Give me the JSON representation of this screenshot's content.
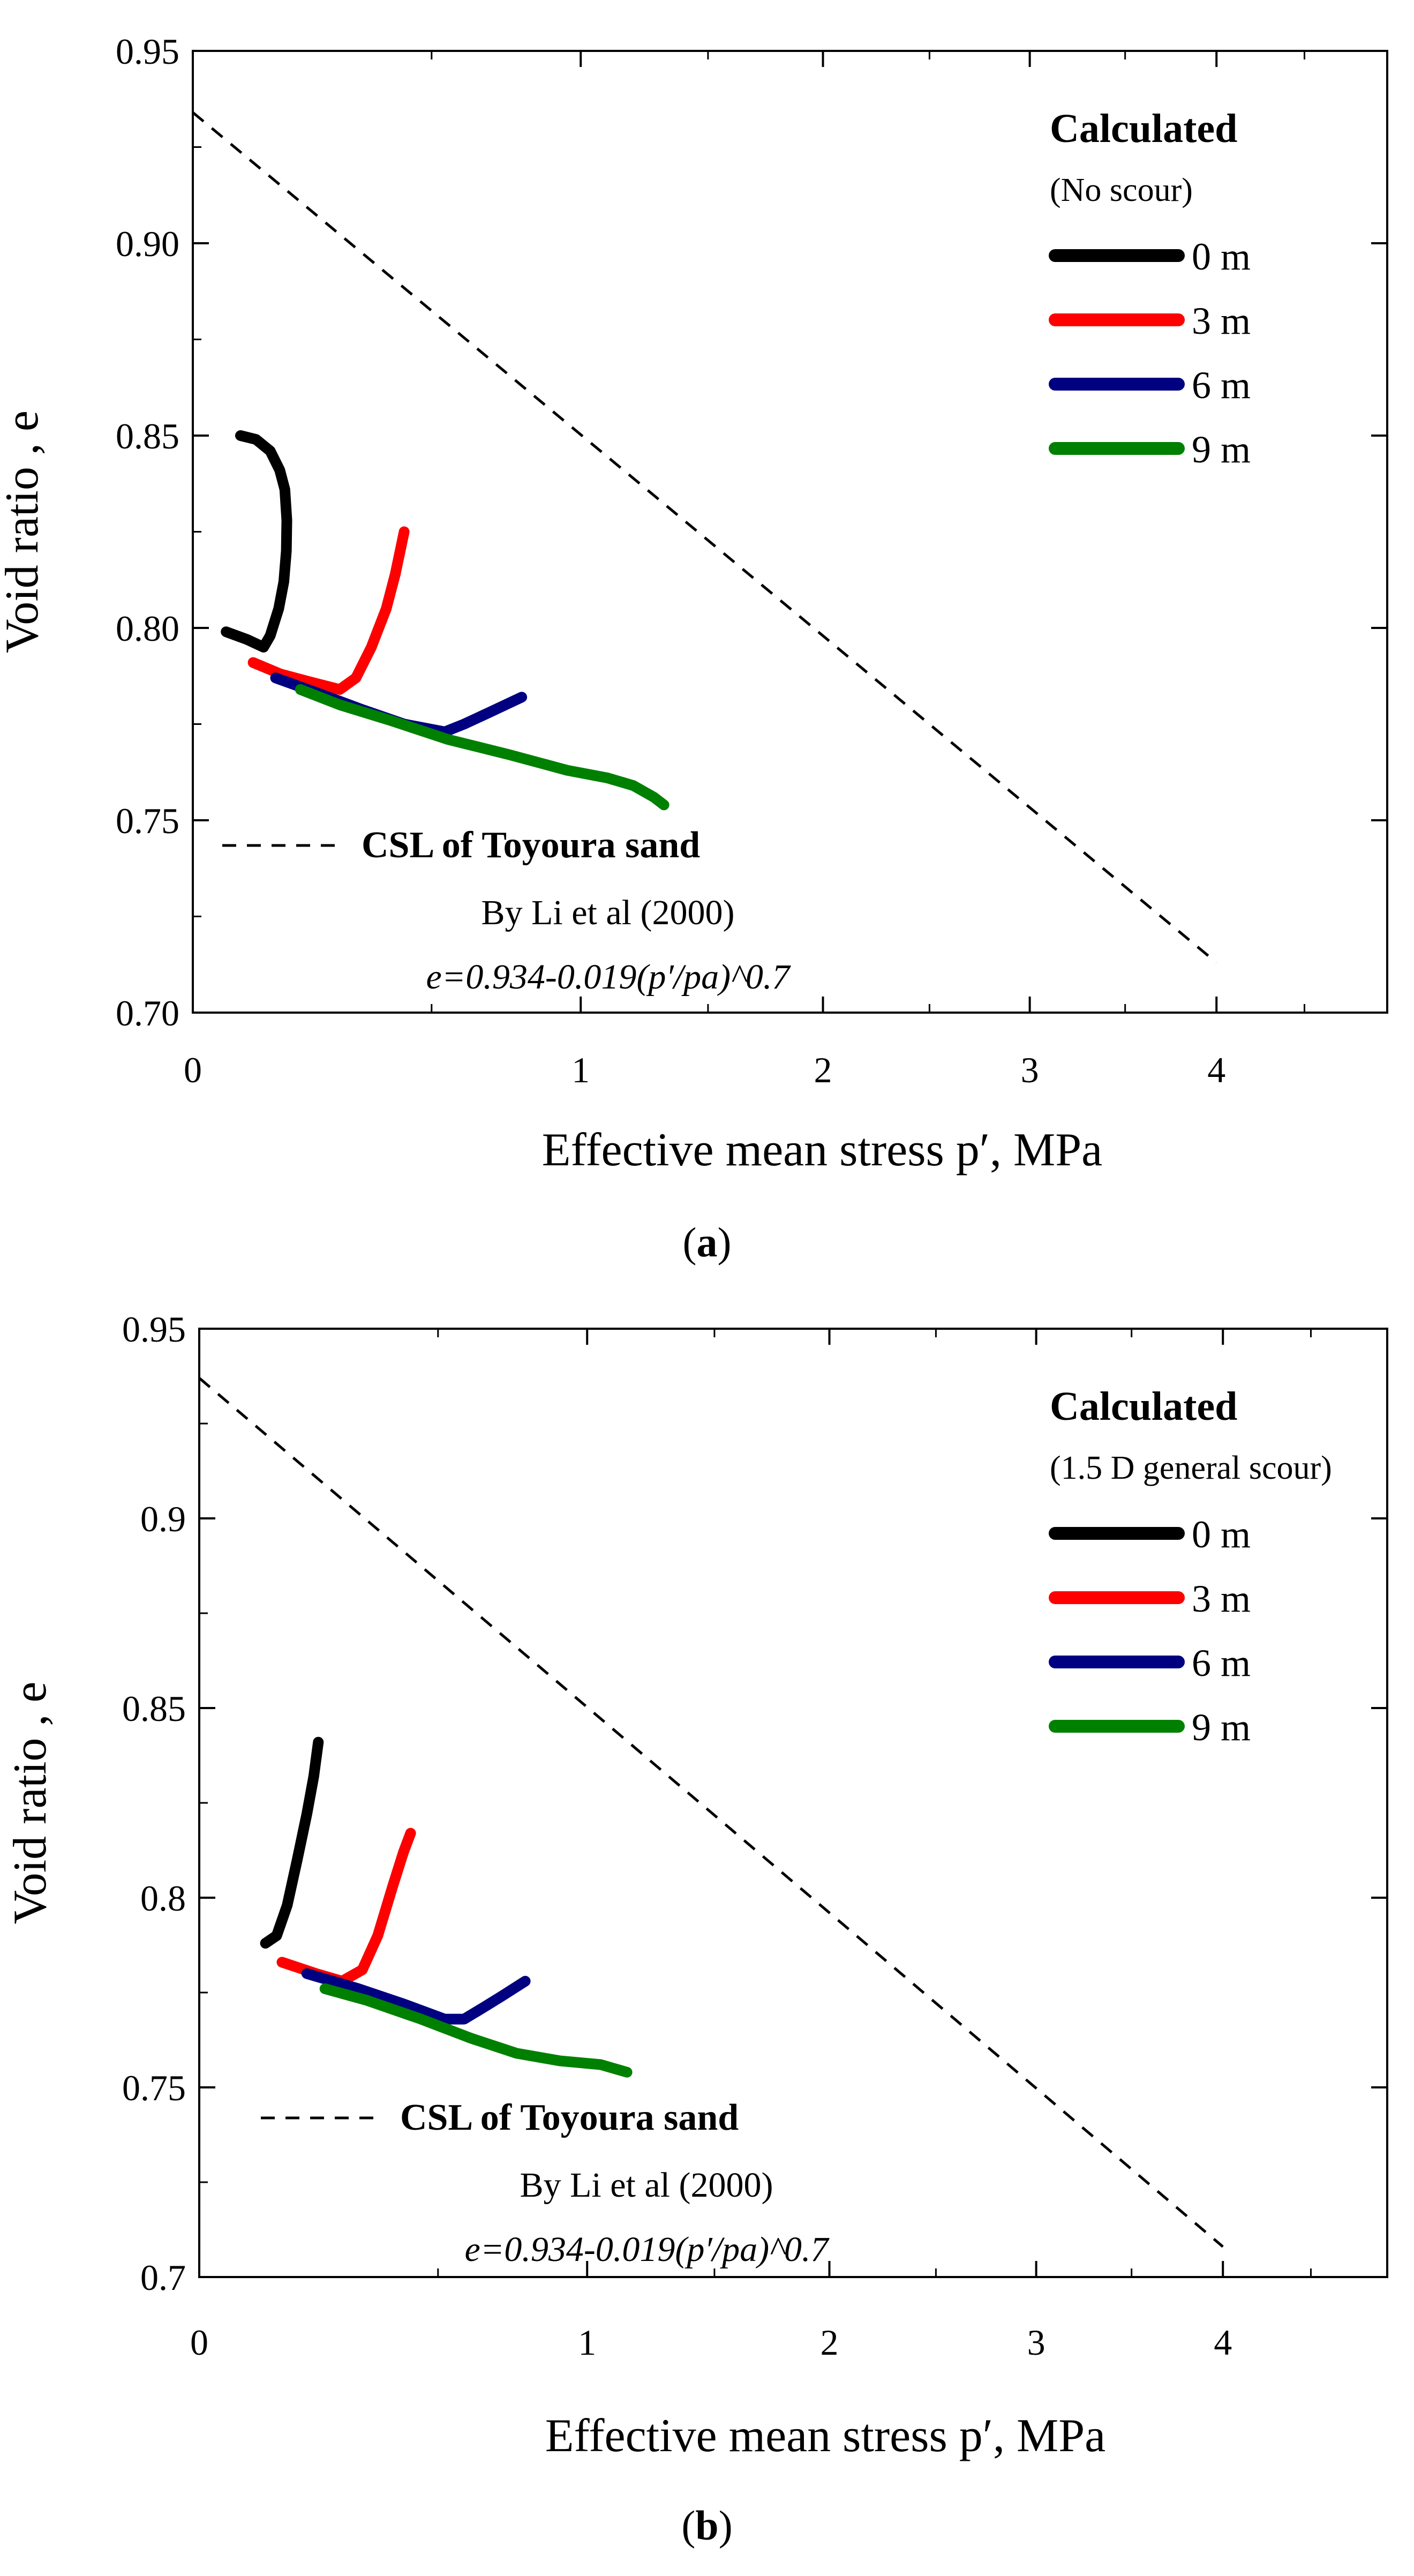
{
  "chart_data": [
    {
      "type": "line",
      "panel_label": "a",
      "xlabel": "Effective mean stress p′, MPa",
      "ylabel": "Void ratio , e",
      "x_axis_scale": "power 0.7 (p′/pa)^0.7",
      "ylim": [
        0.7,
        0.95
      ],
      "x_ticks": [
        "0",
        "1",
        "2",
        "3",
        "4"
      ],
      "y_ticks": [
        "0.70",
        "0.75",
        "0.80",
        "0.85",
        "0.90",
        "0.95"
      ],
      "legend": {
        "title": "Calculated",
        "subtitle": "(No scour)",
        "placement": "top-right"
      },
      "series": [
        {
          "name": "0 m",
          "color": "#000000",
          "points": [
            [
              0.05,
              0.85
            ],
            [
              0.075,
              0.849
            ],
            [
              0.1,
              0.846
            ],
            [
              0.118,
              0.841
            ],
            [
              0.128,
              0.836
            ],
            [
              0.132,
              0.828
            ],
            [
              0.131,
              0.82
            ],
            [
              0.126,
              0.812
            ],
            [
              0.116,
              0.805
            ],
            [
              0.1,
              0.798
            ],
            [
              0.088,
              0.795
            ],
            [
              0.06,
              0.797
            ],
            [
              0.03,
              0.799
            ]
          ]
        },
        {
          "name": "3 m",
          "color": "#ff0000",
          "points": [
            [
              0.07,
              0.791
            ],
            [
              0.12,
              0.788
            ],
            [
              0.18,
              0.786
            ],
            [
              0.25,
              0.784
            ],
            [
              0.29,
              0.787
            ],
            [
              0.33,
              0.795
            ],
            [
              0.37,
              0.805
            ],
            [
              0.395,
              0.814
            ],
            [
              0.42,
              0.825
            ]
          ]
        },
        {
          "name": "6 m",
          "color": "#000080",
          "points": [
            [
              0.11,
              0.787
            ],
            [
              0.2,
              0.783
            ],
            [
              0.3,
              0.779
            ],
            [
              0.42,
              0.775
            ],
            [
              0.54,
              0.773
            ],
            [
              0.6,
              0.775
            ],
            [
              0.68,
              0.778
            ],
            [
              0.79,
              0.782
            ]
          ]
        },
        {
          "name": "9 m",
          "color": "#008000",
          "points": [
            [
              0.16,
              0.784
            ],
            [
              0.25,
              0.78
            ],
            [
              0.38,
              0.776
            ],
            [
              0.55,
              0.771
            ],
            [
              0.75,
              0.767
            ],
            [
              0.95,
              0.763
            ],
            [
              1.1,
              0.761
            ],
            [
              1.2,
              0.759
            ],
            [
              1.28,
              0.756
            ],
            [
              1.32,
              0.754
            ]
          ]
        }
      ],
      "csl_line": {
        "label": "CSL of Toyoura sand",
        "source": "By Li et al (2000)",
        "equation": "e=0.934-0.019(p′/pa)^0.7",
        "points": [
          [
            0.0,
            0.934
          ],
          [
            4.0,
            0.713
          ]
        ]
      }
    },
    {
      "type": "line",
      "panel_label": "b",
      "xlabel": "Effective mean stress p′, MPa",
      "ylabel": "Void ratio , e",
      "x_axis_scale": "power 0.7 (p′/pa)^0.7",
      "ylim": [
        0.7,
        0.95
      ],
      "x_ticks": [
        "0",
        "1",
        "2",
        "3",
        "4"
      ],
      "y_ticks": [
        "0.7",
        "0.75",
        "0.8",
        "0.85",
        "0.9",
        "0.95"
      ],
      "legend": {
        "title": "Calculated",
        "subtitle": "(1.5 D general scour)",
        "placement": "top-right"
      },
      "series": [
        {
          "name": "0 m",
          "color": "#000000",
          "points": [
            [
              0.08,
              0.788
            ],
            [
              0.1,
              0.79
            ],
            [
              0.12,
              0.798
            ],
            [
              0.14,
              0.81
            ],
            [
              0.16,
              0.822
            ],
            [
              0.175,
              0.832
            ],
            [
              0.185,
              0.841
            ]
          ]
        },
        {
          "name": "3 m",
          "color": "#ff0000",
          "points": [
            [
              0.11,
              0.783
            ],
            [
              0.18,
              0.78
            ],
            [
              0.24,
              0.778
            ],
            [
              0.29,
              0.781
            ],
            [
              0.33,
              0.79
            ],
            [
              0.37,
              0.803
            ],
            [
              0.4,
              0.812
            ],
            [
              0.42,
              0.817
            ]
          ]
        },
        {
          "name": "6 m",
          "color": "#000080",
          "points": [
            [
              0.16,
              0.78
            ],
            [
              0.28,
              0.776
            ],
            [
              0.4,
              0.772
            ],
            [
              0.52,
              0.768
            ],
            [
              0.58,
              0.768
            ],
            [
              0.64,
              0.771
            ],
            [
              0.7,
              0.774
            ],
            [
              0.78,
              0.778
            ]
          ]
        },
        {
          "name": "9 m",
          "color": "#008000",
          "points": [
            [
              0.2,
              0.776
            ],
            [
              0.3,
              0.773
            ],
            [
              0.45,
              0.768
            ],
            [
              0.6,
              0.763
            ],
            [
              0.75,
              0.759
            ],
            [
              0.9,
              0.757
            ],
            [
              1.05,
              0.756
            ],
            [
              1.15,
              0.754
            ]
          ]
        }
      ],
      "csl_line": {
        "label": "CSL of Toyoura sand",
        "source": "By Li et al (2000)",
        "equation": "e=0.934-0.019(p′/pa)^0.7",
        "points": [
          [
            0.0,
            0.937
          ],
          [
            4.0,
            0.708
          ]
        ]
      }
    }
  ]
}
